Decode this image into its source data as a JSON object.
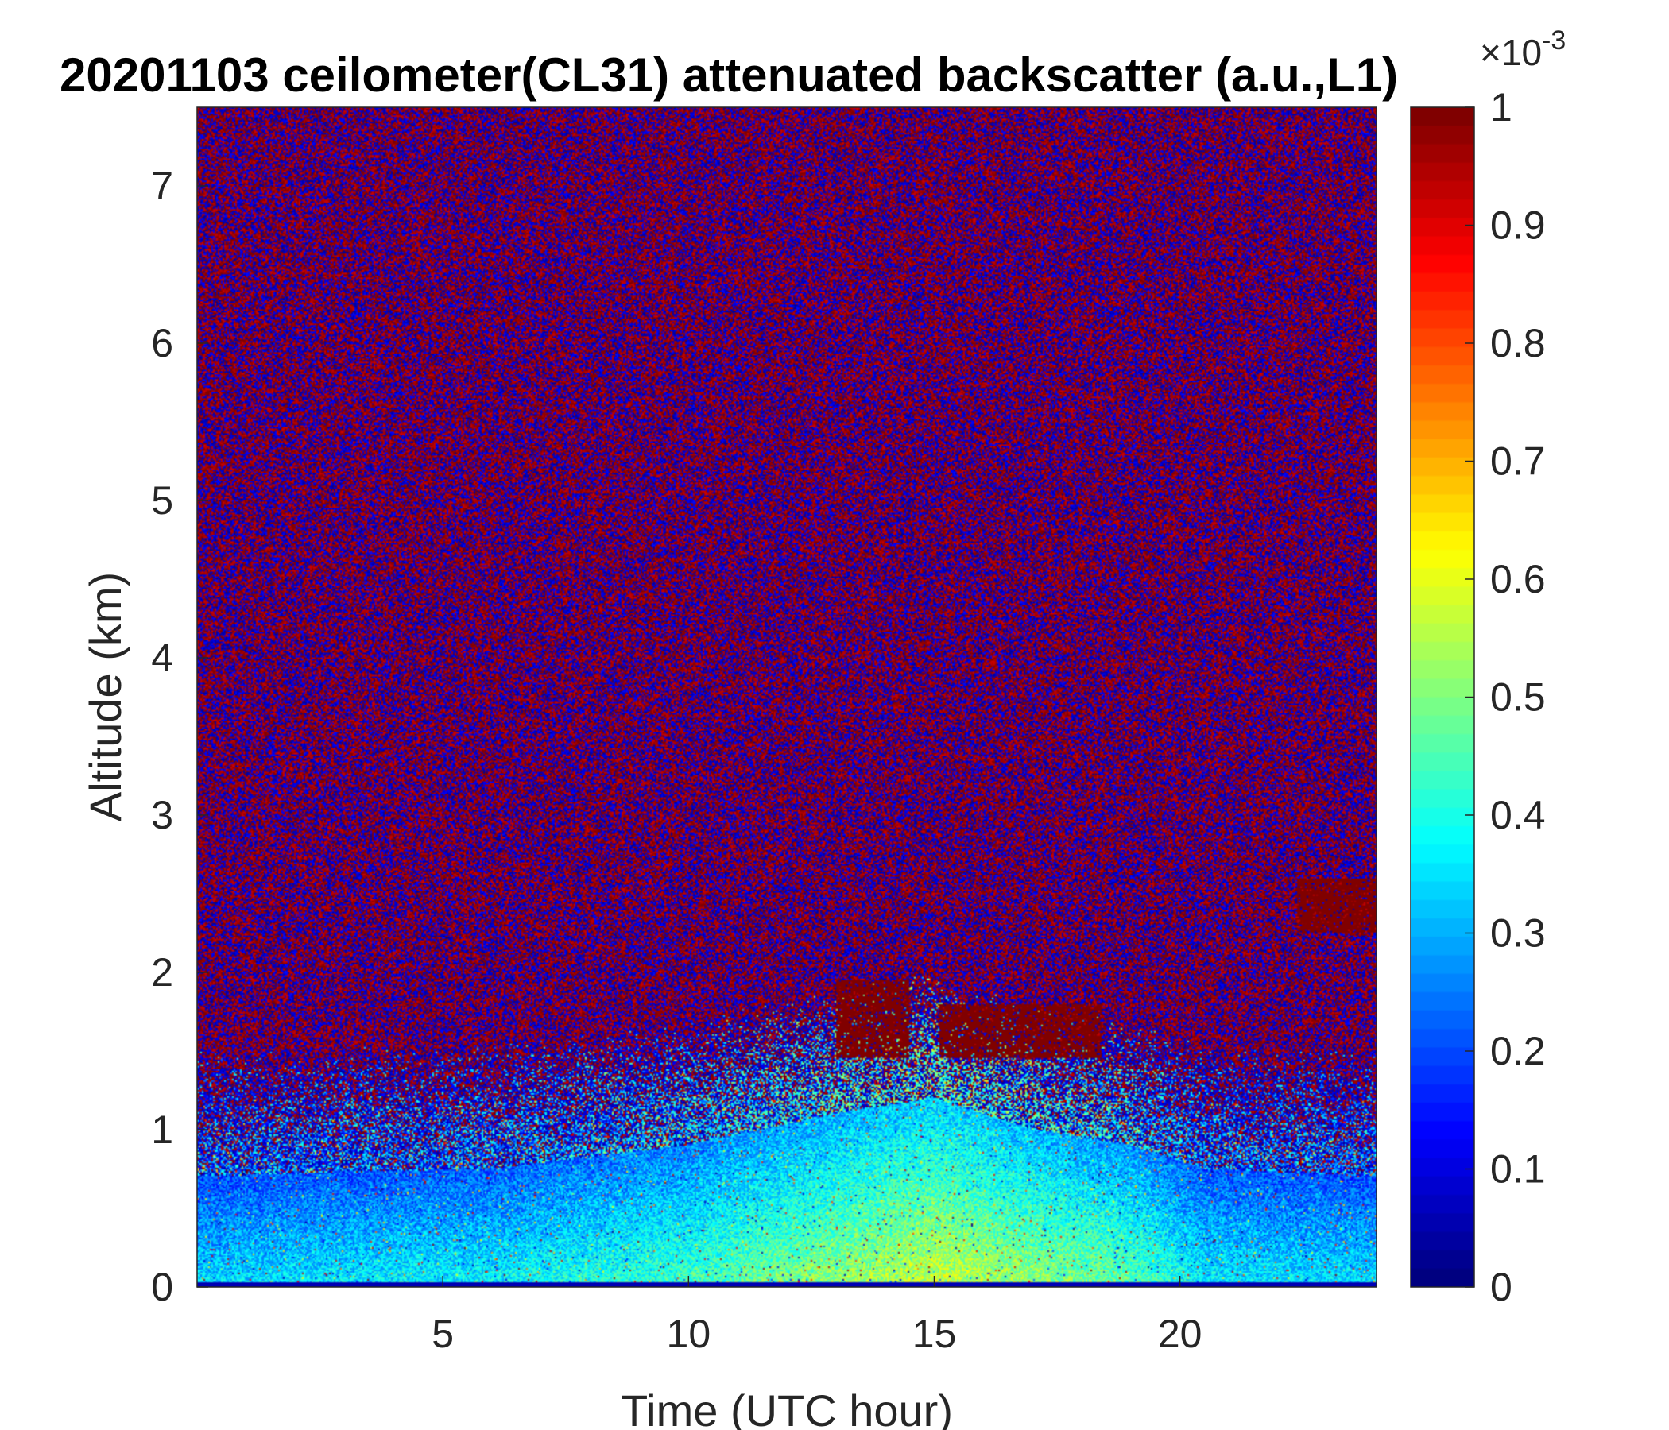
{
  "chart_data": {
    "type": "heatmap",
    "title": "20201103 ceilometer(CL31) attenuated backscatter (a.u.,L1)",
    "xlabel": "Time (UTC hour)",
    "ylabel": "Altitude (km)",
    "xlim": [
      0,
      24
    ],
    "ylim": [
      0,
      7.5
    ],
    "xticks": [
      5,
      10,
      15,
      20
    ],
    "yticks": [
      0,
      1,
      2,
      3,
      4,
      5,
      6,
      7
    ],
    "colorbar": {
      "colormap": "jet",
      "range": [
        0,
        0.001
      ],
      "ticks": [
        0,
        0.1,
        0.2,
        0.3,
        0.4,
        0.5,
        0.6,
        0.7,
        0.8,
        0.9,
        1
      ],
      "tick_labels": [
        "0",
        "0.1",
        "0.2",
        "0.3",
        "0.4",
        "0.5",
        "0.6",
        "0.7",
        "0.8",
        "0.9",
        "1"
      ],
      "exponent_label": "×10",
      "exponent_power": "-3"
    },
    "field": {
      "noise_background": "noisy mix of near-zero and saturated values above ~1.5 km",
      "surface_layer": [
        {
          "x": 0,
          "top_km": 0.7,
          "level": 0.33
        },
        {
          "x": 6,
          "top_km": 0.75,
          "level": 0.36
        },
        {
          "x": 10,
          "top_km": 0.9,
          "level": 0.42
        },
        {
          "x": 13,
          "top_km": 1.1,
          "level": 0.5
        },
        {
          "x": 15,
          "top_km": 1.2,
          "level": 0.55
        },
        {
          "x": 17,
          "top_km": 1.0,
          "level": 0.5
        },
        {
          "x": 19,
          "top_km": 0.9,
          "level": 0.45
        },
        {
          "x": 20.5,
          "top_km": 0.75,
          "level": 0.35
        },
        {
          "x": 24,
          "top_km": 0.7,
          "level": 0.33
        }
      ],
      "cloud_layers": [
        {
          "x_start": 13.0,
          "x_end": 14.5,
          "bottom_km": 1.45,
          "top_km": 1.95
        },
        {
          "x_start": 15.1,
          "x_end": 18.4,
          "bottom_km": 1.45,
          "top_km": 1.8
        },
        {
          "x_start": 22.4,
          "x_end": 24.0,
          "bottom_km": 2.25,
          "top_km": 2.6
        }
      ]
    }
  }
}
